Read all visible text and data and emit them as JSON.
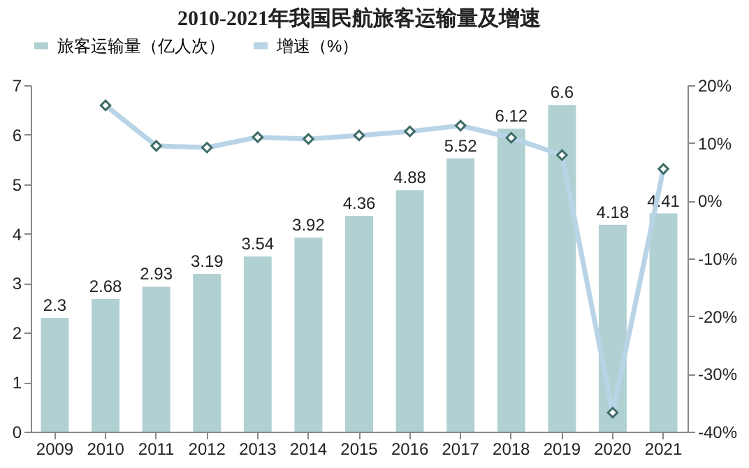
{
  "chart_data": {
    "type": "bar",
    "title": "2010-2021年我国民航旅客运输量及增速",
    "categories": [
      "2009",
      "2010",
      "2011",
      "2012",
      "2013",
      "2014",
      "2015",
      "2016",
      "2017",
      "2018",
      "2019",
      "2020",
      "2021"
    ],
    "series": [
      {
        "name": "旅客运输量（亿人次）",
        "color": "#b0d0d2",
        "values": [
          2.3,
          2.68,
          2.93,
          3.19,
          3.54,
          3.92,
          4.36,
          4.88,
          5.52,
          6.12,
          6.6,
          4.18,
          4.41
        ],
        "value_labels": [
          "2.3",
          "2.68",
          "2.93",
          "3.19",
          "3.54",
          "3.92",
          "4.36",
          "4.88",
          "5.52",
          "6.12",
          "6.6",
          "4.18",
          "4.41"
        ]
      },
      {
        "name": "增速（%）",
        "type": "line",
        "axis": "y2",
        "color": "#b8d4e6",
        "marker": "diamond",
        "values": [
          null,
          16.5,
          9.5,
          9.2,
          11,
          10.7,
          11.3,
          12,
          13,
          10.9,
          7.9,
          -36.7,
          5.5
        ]
      }
    ],
    "ylim": [
      0,
      7
    ],
    "yticks": [
      0,
      1,
      2,
      3,
      4,
      5,
      6,
      7
    ],
    "y2lim": [
      -40,
      20
    ],
    "y2ticks": [
      {
        "value": -40,
        "label": "-40%"
      },
      {
        "value": -30,
        "label": "-30%"
      },
      {
        "value": -20,
        "label": "-20%"
      },
      {
        "value": -10,
        "label": "-10%"
      },
      {
        "value": 0,
        "label": "0%"
      },
      {
        "value": 10,
        "label": "10%"
      },
      {
        "value": 20,
        "label": "20%"
      }
    ],
    "grid": false,
    "legend": "top"
  }
}
